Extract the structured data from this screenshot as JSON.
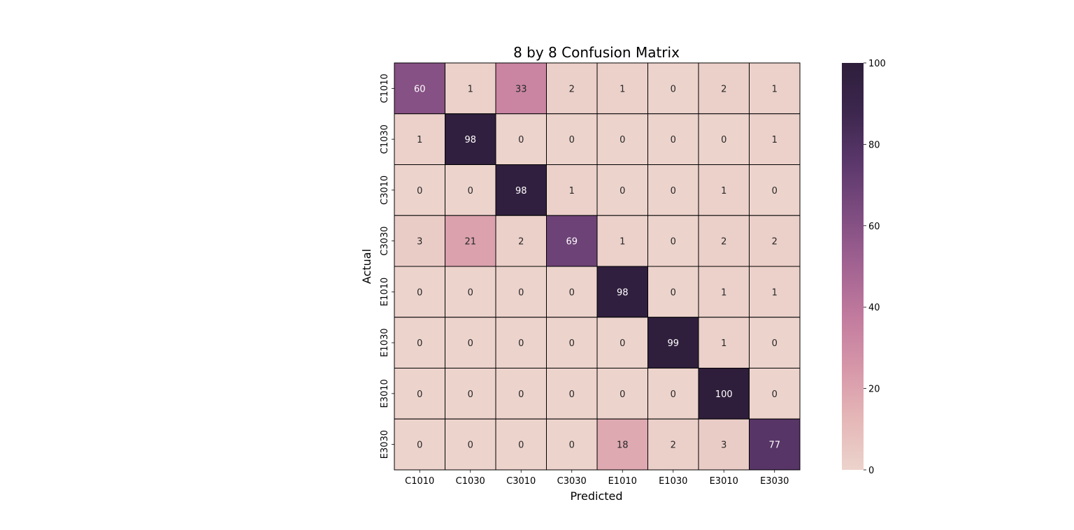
{
  "chart_data": {
    "type": "heatmap",
    "title": "8 by 8 Confusion Matrix",
    "xlabel": "Predicted",
    "ylabel": "Actual",
    "x_categories": [
      "C1010",
      "C1030",
      "C3010",
      "C3030",
      "E1010",
      "E1030",
      "E3010",
      "E3030"
    ],
    "y_categories": [
      "C1010",
      "C1030",
      "C3010",
      "C3030",
      "E1010",
      "E1030",
      "E3010",
      "E3030"
    ],
    "values": [
      [
        60,
        1,
        33,
        2,
        1,
        0,
        2,
        1
      ],
      [
        1,
        98,
        0,
        0,
        0,
        0,
        0,
        1
      ],
      [
        0,
        0,
        98,
        1,
        0,
        0,
        1,
        0
      ],
      [
        3,
        21,
        2,
        69,
        1,
        0,
        2,
        2
      ],
      [
        0,
        0,
        0,
        0,
        98,
        0,
        1,
        1
      ],
      [
        0,
        0,
        0,
        0,
        0,
        99,
        1,
        0
      ],
      [
        0,
        0,
        0,
        0,
        0,
        0,
        100,
        0
      ],
      [
        0,
        0,
        0,
        0,
        18,
        2,
        3,
        77
      ]
    ],
    "colorbar": {
      "range": [
        0,
        100
      ],
      "ticks": [
        "0",
        "20",
        "40",
        "60",
        "80",
        "100"
      ],
      "colors": [
        "#ecd3cc",
        "#e5b7b7",
        "#d697a9",
        "#c27b9e",
        "#a26392",
        "#7f4d81",
        "#5c386c",
        "#3d274f",
        "#2e1e3b"
      ]
    },
    "annotation_text_dark": "#262626",
    "annotation_text_light": "#ffffff",
    "grid_line_color": "#000000"
  }
}
